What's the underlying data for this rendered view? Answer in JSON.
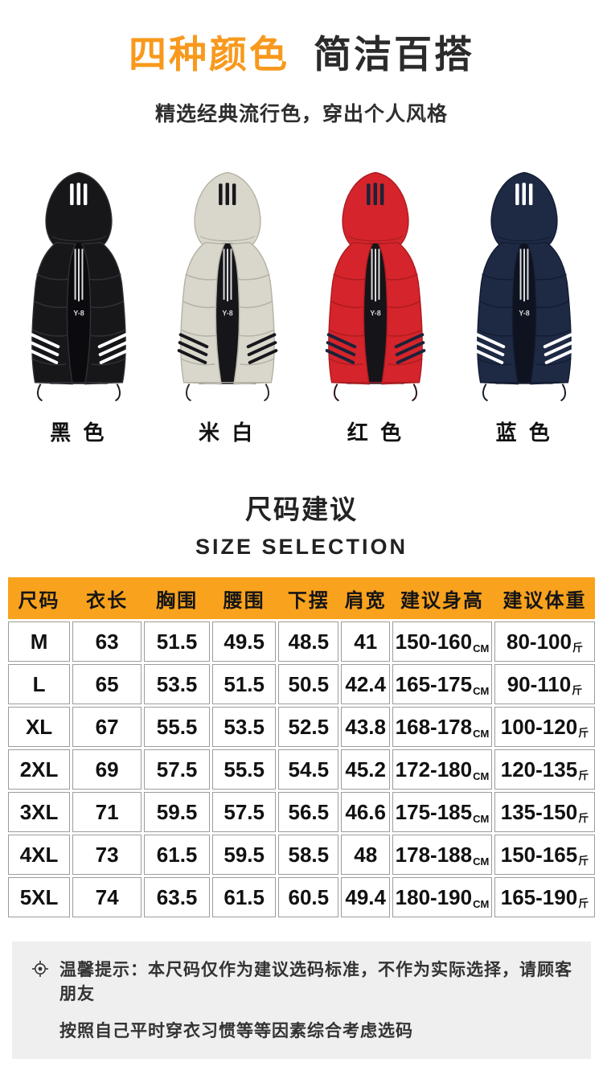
{
  "header": {
    "title_accent": "四种颜色",
    "title_rest": "简洁百搭",
    "subtitle": "精选经典流行色，穿出个人风格",
    "accent_color": "#f8991d"
  },
  "products": {
    "vest_logo": "Y-8",
    "items": [
      {
        "label": "黑 色",
        "body": "#17171a",
        "shade": "#303036",
        "stripe": "#ffffff",
        "inner": "#0b0b0f",
        "cord": "#1d1d1f"
      },
      {
        "label": "米 白",
        "body": "#d9d6cb",
        "shade": "#b4b1a5",
        "stripe": "#17171c",
        "inner": "#15151a",
        "cord": "#2a2a2e"
      },
      {
        "label": "红 色",
        "body": "#d5242b",
        "shade": "#ab1c22",
        "stripe": "#1c2238",
        "inner": "#141419",
        "cord": "#301014"
      },
      {
        "label": "蓝 色",
        "body": "#1e2944",
        "shade": "#131c31",
        "stripe": "#ffffff",
        "inner": "#0f1320",
        "cord": "#121a2c"
      }
    ]
  },
  "size_section": {
    "title_cn": "尺码建议",
    "title_en": "SIZE SELECTION",
    "table": {
      "header_bg": "#f9a21d",
      "columns": [
        "尺码",
        "衣长",
        "胸围",
        "腰围",
        "下摆",
        "肩宽",
        "建议身高",
        "建议体重"
      ],
      "height_unit": "CM",
      "weight_unit": "斤",
      "rows": [
        {
          "size": "M",
          "length": "63",
          "chest": "51.5",
          "waist": "49.5",
          "hem": "48.5",
          "shoulder": "41",
          "height": "150-160",
          "weight": "80-100"
        },
        {
          "size": "L",
          "length": "65",
          "chest": "53.5",
          "waist": "51.5",
          "hem": "50.5",
          "shoulder": "42.4",
          "height": "165-175",
          "weight": "90-110"
        },
        {
          "size": "XL",
          "length": "67",
          "chest": "55.5",
          "waist": "53.5",
          "hem": "52.5",
          "shoulder": "43.8",
          "height": "168-178",
          "weight": "100-120"
        },
        {
          "size": "2XL",
          "length": "69",
          "chest": "57.5",
          "waist": "55.5",
          "hem": "54.5",
          "shoulder": "45.2",
          "height": "172-180",
          "weight": "120-135"
        },
        {
          "size": "3XL",
          "length": "71",
          "chest": "59.5",
          "waist": "57.5",
          "hem": "56.5",
          "shoulder": "46.6",
          "height": "175-185",
          "weight": "135-150"
        },
        {
          "size": "4XL",
          "length": "73",
          "chest": "61.5",
          "waist": "59.5",
          "hem": "58.5",
          "shoulder": "48",
          "height": "178-188",
          "weight": "150-165"
        },
        {
          "size": "5XL",
          "length": "74",
          "chest": "63.5",
          "waist": "61.5",
          "hem": "60.5",
          "shoulder": "49.4",
          "height": "180-190",
          "weight": "165-190"
        }
      ]
    }
  },
  "note": {
    "line1": "温馨提示：本尺码仅作为建议选码标准，不作为实际选择，请顾客朋友",
    "line2": "按照自己平时穿衣习惯等等因素综合考虑选码"
  }
}
